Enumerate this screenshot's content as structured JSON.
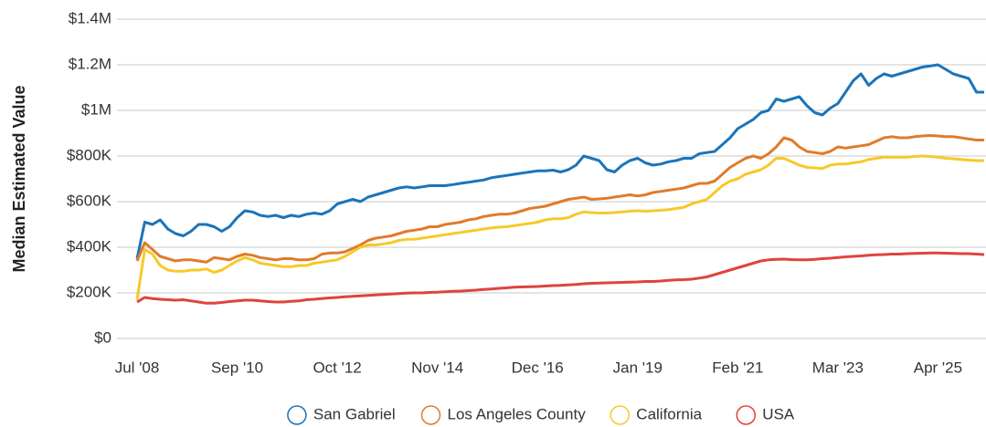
{
  "chart_data": {
    "type": "line",
    "y_label": "Median Estimated Value",
    "categories": [
      "Jul '08",
      null,
      null,
      null,
      null,
      null,
      null,
      null,
      null,
      null,
      null,
      null,
      null,
      "Sep '10",
      null,
      null,
      null,
      null,
      null,
      null,
      null,
      null,
      null,
      null,
      null,
      null,
      "Oct '12",
      null,
      null,
      null,
      null,
      null,
      null,
      null,
      null,
      null,
      null,
      null,
      null,
      "Nov '14",
      null,
      null,
      null,
      null,
      null,
      null,
      null,
      null,
      null,
      null,
      null,
      null,
      "Dec '16",
      null,
      null,
      null,
      null,
      null,
      null,
      null,
      null,
      null,
      null,
      null,
      null,
      "Jan '19",
      null,
      null,
      null,
      null,
      null,
      null,
      null,
      null,
      null,
      null,
      null,
      null,
      "Feb '21",
      null,
      null,
      null,
      null,
      null,
      null,
      null,
      null,
      null,
      null,
      null,
      null,
      "Mar '23",
      null,
      null,
      null,
      null,
      null,
      null,
      null,
      null,
      null,
      null,
      null,
      null,
      "Apr '25",
      null,
      null,
      null,
      null,
      null,
      null
    ],
    "series": [
      {
        "name": "San Gabriel",
        "color": "#1b74b9",
        "values": [
          350000,
          510000,
          500000,
          520000,
          480000,
          460000,
          450000,
          470000,
          500000,
          500000,
          490000,
          470000,
          490000,
          530000,
          560000,
          555000,
          540000,
          535000,
          540000,
          530000,
          540000,
          535000,
          545000,
          550000,
          545000,
          560000,
          590000,
          600000,
          610000,
          600000,
          620000,
          630000,
          640000,
          650000,
          660000,
          665000,
          660000,
          665000,
          670000,
          670000,
          670000,
          675000,
          680000,
          685000,
          690000,
          695000,
          705000,
          710000,
          715000,
          720000,
          725000,
          730000,
          735000,
          735000,
          738000,
          730000,
          740000,
          760000,
          800000,
          790000,
          780000,
          740000,
          730000,
          760000,
          780000,
          790000,
          770000,
          760000,
          765000,
          775000,
          780000,
          790000,
          790000,
          810000,
          815000,
          820000,
          850000,
          880000,
          920000,
          940000,
          960000,
          990000,
          1000000,
          1050000,
          1040000,
          1050000,
          1060000,
          1020000,
          990000,
          980000,
          1010000,
          1030000,
          1080000,
          1130000,
          1160000,
          1110000,
          1140000,
          1160000,
          1150000,
          1160000,
          1170000,
          1180000,
          1190000,
          1195000,
          1200000,
          1180000,
          1160000,
          1150000,
          1140000,
          1080000,
          1080000
        ]
      },
      {
        "name": "Los Angeles County",
        "color": "#e07b2b",
        "values": [
          340000,
          420000,
          390000,
          360000,
          350000,
          340000,
          345000,
          345000,
          340000,
          335000,
          355000,
          350000,
          345000,
          360000,
          370000,
          365000,
          355000,
          350000,
          345000,
          350000,
          350000,
          345000,
          345000,
          350000,
          370000,
          375000,
          375000,
          380000,
          395000,
          410000,
          430000,
          440000,
          445000,
          450000,
          460000,
          470000,
          475000,
          480000,
          490000,
          490000,
          500000,
          505000,
          510000,
          520000,
          525000,
          535000,
          540000,
          545000,
          545000,
          550000,
          560000,
          570000,
          575000,
          580000,
          590000,
          600000,
          610000,
          615000,
          620000,
          610000,
          612000,
          615000,
          620000,
          625000,
          630000,
          625000,
          630000,
          640000,
          645000,
          650000,
          655000,
          660000,
          670000,
          680000,
          680000,
          690000,
          720000,
          750000,
          770000,
          790000,
          800000,
          790000,
          810000,
          840000,
          880000,
          870000,
          840000,
          820000,
          815000,
          810000,
          820000,
          840000,
          835000,
          840000,
          845000,
          850000,
          865000,
          880000,
          885000,
          880000,
          880000,
          885000,
          888000,
          890000,
          888000,
          885000,
          885000,
          880000,
          875000,
          870000,
          870000
        ]
      },
      {
        "name": "California",
        "color": "#f7c928",
        "values": [
          170000,
          390000,
          370000,
          320000,
          300000,
          295000,
          295000,
          300000,
          300000,
          305000,
          290000,
          300000,
          320000,
          340000,
          355000,
          345000,
          330000,
          325000,
          320000,
          315000,
          315000,
          320000,
          320000,
          330000,
          335000,
          340000,
          345000,
          360000,
          380000,
          400000,
          410000,
          410000,
          415000,
          420000,
          430000,
          435000,
          435000,
          440000,
          445000,
          450000,
          455000,
          460000,
          465000,
          470000,
          475000,
          480000,
          485000,
          488000,
          490000,
          495000,
          500000,
          505000,
          510000,
          520000,
          525000,
          525000,
          530000,
          545000,
          555000,
          552000,
          550000,
          550000,
          552000,
          555000,
          558000,
          560000,
          558000,
          560000,
          562000,
          565000,
          570000,
          575000,
          590000,
          600000,
          610000,
          640000,
          670000,
          690000,
          700000,
          720000,
          730000,
          740000,
          760000,
          790000,
          790000,
          775000,
          760000,
          750000,
          748000,
          745000,
          760000,
          765000,
          765000,
          770000,
          775000,
          785000,
          790000,
          795000,
          795000,
          795000,
          795000,
          798000,
          800000,
          798000,
          795000,
          790000,
          788000,
          785000,
          782000,
          780000,
          780000
        ]
      },
      {
        "name": "USA",
        "color": "#e0433d",
        "values": [
          160000,
          180000,
          175000,
          172000,
          170000,
          168000,
          170000,
          165000,
          160000,
          155000,
          155000,
          158000,
          162000,
          165000,
          168000,
          168000,
          165000,
          162000,
          160000,
          160000,
          163000,
          165000,
          170000,
          172000,
          175000,
          178000,
          180000,
          183000,
          185000,
          187000,
          189000,
          191000,
          193000,
          195000,
          197000,
          199000,
          200000,
          200000,
          202000,
          203000,
          205000,
          207000,
          208000,
          210000,
          212000,
          215000,
          217000,
          220000,
          222000,
          225000,
          226000,
          227000,
          228000,
          230000,
          232000,
          233000,
          235000,
          237000,
          240000,
          242000,
          243000,
          244000,
          245000,
          246000,
          247000,
          248000,
          250000,
          250000,
          252000,
          255000,
          257000,
          258000,
          260000,
          265000,
          270000,
          280000,
          290000,
          300000,
          310000,
          320000,
          330000,
          340000,
          345000,
          347000,
          348000,
          346000,
          345000,
          345000,
          347000,
          350000,
          352000,
          355000,
          358000,
          360000,
          362000,
          365000,
          367000,
          368000,
          370000,
          370000,
          372000,
          373000,
          374000,
          375000,
          375000,
          374000,
          373000,
          372000,
          372000,
          370000,
          368000
        ]
      }
    ],
    "ylim": [
      0,
      1400000
    ],
    "yticks": [
      {
        "value": 0,
        "label": "$0"
      },
      {
        "value": 200000,
        "label": "$200K"
      },
      {
        "value": 400000,
        "label": "$400K"
      },
      {
        "value": 600000,
        "label": "$600K"
      },
      {
        "value": 800000,
        "label": "$800K"
      },
      {
        "value": 1000000,
        "label": "$1M"
      },
      {
        "value": 1200000,
        "label": "$1.2M"
      },
      {
        "value": 1400000,
        "label": "$1.4M"
      }
    ],
    "grid": true,
    "legend": "bottom"
  }
}
